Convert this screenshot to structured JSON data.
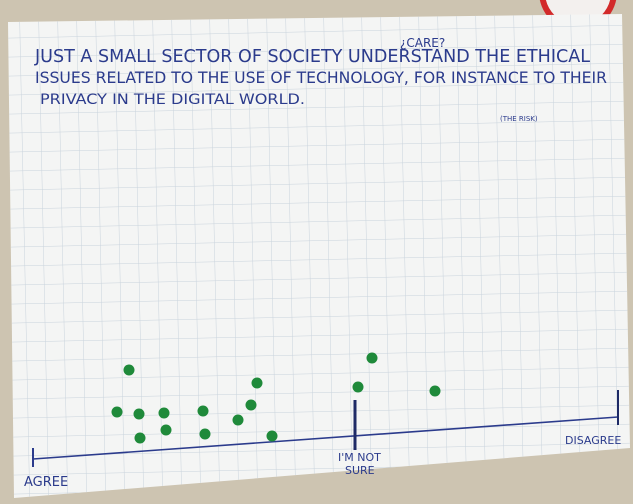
{
  "heading": {
    "lines": [
      "JUST A SMALL SECTOR OF SOCIETY UNDERSTAND THE ETHICAL",
      "ISSUES RELATED TO THE USE OF TECHNOLOGY, FOR INSTANCE TO THEIR",
      "PRIVACY IN THE DIGITAL WORLD."
    ],
    "insert_above": "¿CARE?",
    "insert_below": "(THE RISK)"
  },
  "scale": {
    "left": "AGREE",
    "middle": [
      "I'M NOT",
      "SURE"
    ],
    "right": "DISAGREE"
  }
}
